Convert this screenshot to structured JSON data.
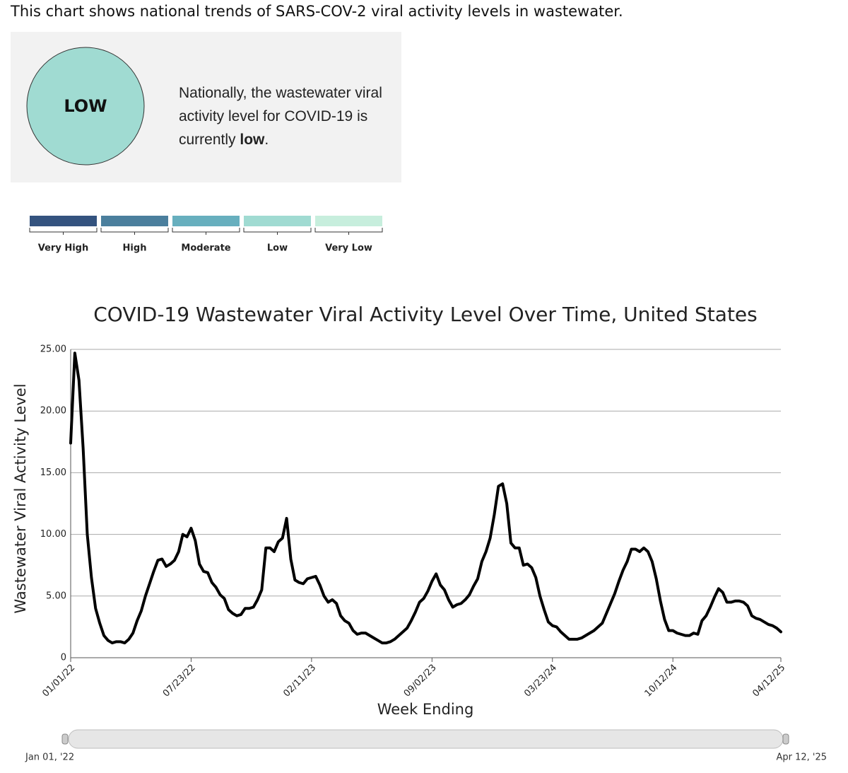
{
  "intro": "This chart shows national trends of SARS-COV-2 viral activity levels in wastewater.",
  "status": {
    "badge": "LOW",
    "badge_color": "#a0dbd2",
    "message_before": "Nationally, the wastewater viral activity level for COVID-19 is currently ",
    "message_bold": "low",
    "message_after": "."
  },
  "levels": [
    {
      "name": "Very High",
      "color": "#34537f"
    },
    {
      "name": "High",
      "color": "#4b7f9d"
    },
    {
      "name": "Moderate",
      "color": "#67afbe"
    },
    {
      "name": "Low",
      "color": "#a0dbd2"
    },
    {
      "name": "Very Low",
      "color": "#c7eedd"
    }
  ],
  "chart_data": {
    "type": "line",
    "title": "COVID-19 Wastewater Viral Activity Level Over Time, United States",
    "x_label": "Week Ending",
    "y_label": "Wastewater Viral Activity Level",
    "x": [
      "01/01/22",
      "01/08/22",
      "01/15/22",
      "01/22/22",
      "01/29/22",
      "02/05/22",
      "02/12/22",
      "02/19/22",
      "02/26/22",
      "03/05/22",
      "03/12/22",
      "03/19/22",
      "03/26/22",
      "04/02/22",
      "04/09/22",
      "04/16/22",
      "04/23/22",
      "04/30/22",
      "05/07/22",
      "05/14/22",
      "05/21/22",
      "05/28/22",
      "06/04/22",
      "06/11/22",
      "06/18/22",
      "06/25/22",
      "07/02/22",
      "07/09/22",
      "07/16/22",
      "07/23/22",
      "07/30/22",
      "08/06/22",
      "08/13/22",
      "08/20/22",
      "08/27/22",
      "09/03/22",
      "09/10/22",
      "09/17/22",
      "09/24/22",
      "10/01/22",
      "10/08/22",
      "10/15/22",
      "10/22/22",
      "10/29/22",
      "11/05/22",
      "11/12/22",
      "11/19/22",
      "11/26/22",
      "12/03/22",
      "12/10/22",
      "12/17/22",
      "12/24/22",
      "12/31/22",
      "01/07/23",
      "01/14/23",
      "01/21/23",
      "01/28/23",
      "02/04/23",
      "02/11/23",
      "02/18/23",
      "02/25/23",
      "03/04/23",
      "03/11/23",
      "03/18/23",
      "03/25/23",
      "04/01/23",
      "04/08/23",
      "04/15/23",
      "04/22/23",
      "04/29/23",
      "05/06/23",
      "05/13/23",
      "05/20/23",
      "05/27/23",
      "06/03/23",
      "06/10/23",
      "06/17/23",
      "06/24/23",
      "07/01/23",
      "07/08/23",
      "07/15/23",
      "07/22/23",
      "07/29/23",
      "08/05/23",
      "08/12/23",
      "08/19/23",
      "08/26/23",
      "09/02/23",
      "09/09/23",
      "09/16/23",
      "09/23/23",
      "09/30/23",
      "10/07/23",
      "10/14/23",
      "10/21/23",
      "10/28/23",
      "11/04/23",
      "11/11/23",
      "11/18/23",
      "11/25/23",
      "12/02/23",
      "12/09/23",
      "12/16/23",
      "12/23/23",
      "12/30/23",
      "01/06/24",
      "01/13/24",
      "01/20/24",
      "01/27/24",
      "02/03/24",
      "02/10/24",
      "02/17/24",
      "02/24/24",
      "03/02/24",
      "03/09/24",
      "03/16/24",
      "03/23/24",
      "03/30/24",
      "04/06/24",
      "04/13/24",
      "04/20/24",
      "04/27/24",
      "05/04/24",
      "05/11/24",
      "05/18/24",
      "05/25/24",
      "06/01/24",
      "06/08/24",
      "06/15/24",
      "06/22/24",
      "06/29/24",
      "07/06/24",
      "07/13/24",
      "07/20/24",
      "07/27/24",
      "08/03/24",
      "08/10/24",
      "08/17/24",
      "08/24/24",
      "08/31/24",
      "09/07/24",
      "09/14/24",
      "09/21/24",
      "09/28/24",
      "10/05/24",
      "10/12/24",
      "10/19/24",
      "10/26/24",
      "11/02/24",
      "11/09/24",
      "11/16/24",
      "11/23/24",
      "11/30/24",
      "12/07/24",
      "12/14/24",
      "12/21/24",
      "12/28/24",
      "01/04/25",
      "01/11/25",
      "01/18/25",
      "01/25/25",
      "02/01/25",
      "02/08/25",
      "02/15/25",
      "02/22/25",
      "03/01/25",
      "03/08/25",
      "03/15/25",
      "03/22/25",
      "03/29/25",
      "04/05/25",
      "04/12/25"
    ],
    "series": [
      {
        "color": "#000000",
        "values": [
          17.4,
          24.7,
          22.5,
          17,
          10,
          6.5,
          4,
          2.8,
          1.8,
          1.4,
          1.2,
          1.3,
          1.3,
          1.2,
          1.5,
          2.0,
          3.0,
          3.8,
          5.0,
          6.0,
          7.0,
          7.9,
          8.0,
          7.4,
          7.6,
          7.9,
          8.6,
          10.0,
          9.8,
          10.5,
          9.5,
          7.6,
          7.0,
          6.9,
          6.1,
          5.7,
          5.1,
          4.8,
          3.9,
          3.6,
          3.4,
          3.5,
          4.0,
          4.0,
          4.1,
          4.7,
          5.5,
          8.9,
          8.9,
          8.6,
          9.4,
          9.7,
          11.3,
          8.0,
          6.3,
          6.1,
          6.0,
          6.4,
          6.5,
          6.6,
          5.9,
          5.0,
          4.5,
          4.7,
          4.4,
          3.4,
          3.0,
          2.8,
          2.2,
          1.9,
          2.0,
          2.0,
          1.8,
          1.6,
          1.4,
          1.2,
          1.2,
          1.3,
          1.5,
          1.8,
          2.1,
          2.4,
          3.0,
          3.7,
          4.5,
          4.8,
          5.4,
          6.2,
          6.8,
          5.9,
          5.5,
          4.7,
          4.1,
          4.3,
          4.4,
          4.7,
          5.1,
          5.8,
          6.4,
          7.8,
          8.6,
          9.7,
          11.6,
          13.9,
          14.1,
          12.5,
          9.3,
          8.9,
          8.9,
          7.5,
          7.6,
          7.3,
          6.5,
          5.0,
          3.9,
          2.9,
          2.6,
          2.5,
          2.1,
          1.8,
          1.5,
          1.5,
          1.5,
          1.6,
          1.8,
          2.0,
          2.2,
          2.5,
          2.8,
          3.6,
          4.4,
          5.2,
          6.2,
          7.1,
          7.8,
          8.8,
          8.8,
          8.6,
          8.9,
          8.6,
          7.8,
          6.4,
          4.6,
          3.1,
          2.2,
          2.2,
          2.0,
          1.9,
          1.8,
          1.8,
          2.0,
          1.9,
          3.0,
          3.4,
          4.1,
          4.9,
          5.6,
          5.3,
          4.5,
          4.5,
          4.6,
          4.6,
          4.5,
          4.2,
          3.4,
          3.2,
          3.1,
          2.9,
          2.7,
          2.6,
          2.4,
          2.1
        ]
      }
    ],
    "xlim": [
      "01/01/22",
      "04/12/25"
    ],
    "xticks": [
      "01/01/22",
      "07/23/22",
      "02/11/23",
      "09/02/23",
      "03/23/24",
      "10/12/24",
      "04/12/25"
    ],
    "ylim": [
      0,
      25
    ],
    "yticks": [
      0,
      {
        "value": 5,
        "label": "5.00"
      },
      {
        "value": 10,
        "label": "10.00"
      },
      {
        "value": 15,
        "label": "15.00"
      },
      {
        "value": 20,
        "label": "20.00"
      },
      {
        "value": 25,
        "label": "25.00"
      }
    ],
    "grid": true
  },
  "range_slider": {
    "start_label": "Jan 01, '22",
    "end_label": "Apr 12, '25"
  }
}
